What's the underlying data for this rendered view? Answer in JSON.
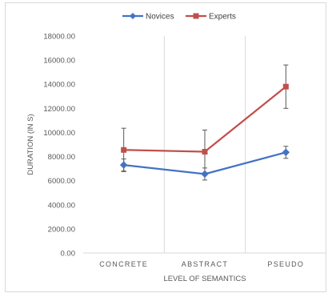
{
  "chart_data": {
    "type": "line",
    "categories": [
      "CONCRETE",
      "ABSTRACT",
      "PSEUDO"
    ],
    "xlabel": "LEVEL OF SEMANTICS",
    "ylabel": "DURATION (IN S)",
    "ylim": [
      0,
      18000
    ],
    "yticks": [
      "0.00",
      "2000.00",
      "4000.00",
      "6000.00",
      "8000.00",
      "10000.00",
      "12000.00",
      "14000.00",
      "16000.00",
      "18000.00"
    ],
    "grid": "vertical dividers between categories",
    "legend_position": "top-center",
    "series": [
      {
        "name": "Novices",
        "color": "#4472c4",
        "marker": "diamond",
        "values": [
          7300,
          6550,
          8350
        ],
        "error": [
          [
            500,
            500
          ],
          [
            500,
            500
          ],
          [
            500,
            500
          ]
        ]
      },
      {
        "name": "Experts",
        "color": "#c0504d",
        "marker": "square",
        "values": [
          8550,
          8400,
          13800
        ],
        "error": [
          [
            1800,
            1800
          ],
          [
            1800,
            1800
          ],
          [
            1800,
            1800
          ]
        ]
      }
    ]
  }
}
